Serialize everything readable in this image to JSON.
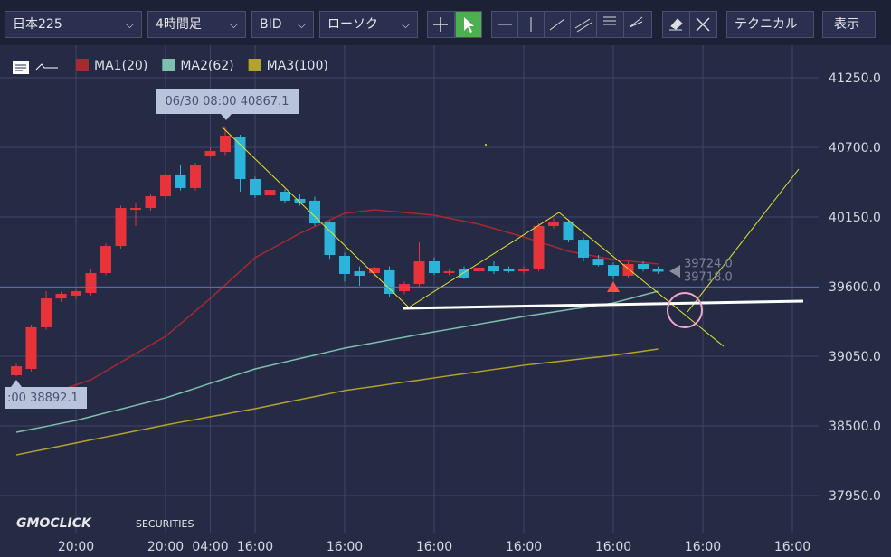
{
  "toolbar": {
    "symbol": "日本225",
    "timeframe": "4時間足",
    "price_type": "BID",
    "chart_style": "ローソク",
    "technical": "テクニカル",
    "display": "表示"
  },
  "logo": {
    "brand": "GMOCLICK",
    "sub": "SECURITIES"
  },
  "chart_data": {
    "type": "candlestick",
    "categories": [
      null,
      null,
      null,
      null,
      "20:00",
      null,
      null,
      null,
      null,
      null,
      "20:00",
      null,
      null,
      "04:00",
      null,
      null,
      "16:00",
      null,
      null,
      null,
      null,
      null,
      "16:00",
      null,
      null,
      null,
      null,
      null,
      "16:00",
      null,
      null,
      null,
      null,
      null,
      "16:00",
      null,
      null,
      null,
      null,
      null,
      "16:00",
      null,
      null,
      null,
      null,
      null,
      "16:00",
      null,
      null,
      null,
      null,
      null,
      "16:00"
    ],
    "open": [
      38900,
      38950,
      39279,
      39507,
      39529,
      39550,
      39707,
      39921,
      40207,
      40221,
      40314,
      40486,
      40379,
      40636,
      40664,
      40779,
      40450,
      40321,
      40350,
      40293,
      40279,
      40107,
      39843,
      39721,
      39707,
      39729,
      39564,
      39621,
      39800,
      39707,
      39736,
      39721,
      39764,
      39736,
      39721,
      39743,
      40079,
      40114,
      39971,
      39821,
      39771,
      39686,
      39779,
      39743,
      null,
      null,
      null,
      null,
      null,
      null,
      null,
      null,
      null
    ],
    "high": [
      38990,
      39300,
      39564,
      39560,
      39580,
      39740,
      39940,
      40240,
      40257,
      40330,
      40500,
      40560,
      40580,
      40700,
      40867,
      40800,
      40470,
      40380,
      40370,
      40330,
      40310,
      40120,
      39870,
      39760,
      39760,
      39760,
      39640,
      39950,
      39830,
      39740,
      39760,
      39770,
      39800,
      39760,
      39760,
      40100,
      40140,
      40130,
      39990,
      39850,
      39790,
      39800,
      39800,
      39760,
      null,
      null,
      null,
      null,
      null,
      null,
      null,
      null,
      null
    ],
    "low": [
      38892,
      38930,
      39260,
      39480,
      39500,
      39530,
      39690,
      39900,
      40079,
      40200,
      40290,
      40360,
      40360,
      40620,
      40640,
      40350,
      40300,
      40300,
      40260,
      40240,
      40080,
      39820,
      39640,
      39607,
      39680,
      39520,
      39540,
      39600,
      39690,
      39690,
      39660,
      39700,
      39700,
      39710,
      39700,
      39720,
      40060,
      39950,
      39800,
      39760,
      39660,
      39670,
      39720,
      39700,
      null,
      null,
      null,
      null,
      null,
      null,
      null,
      null,
      null
    ],
    "close": [
      38971,
      39279,
      39507,
      39543,
      39564,
      39707,
      39921,
      40221,
      40221,
      40314,
      40486,
      40379,
      40564,
      40671,
      40793,
      40450,
      40321,
      40364,
      40279,
      40257,
      40100,
      39850,
      39700,
      39686,
      39750,
      39543,
      39621,
      39800,
      39707,
      39721,
      39671,
      39750,
      39721,
      39721,
      39743,
      40079,
      40114,
      39971,
      39829,
      39771,
      39686,
      39779,
      39736,
      39718,
      null,
      null,
      null,
      null,
      null,
      null,
      null,
      null,
      null
    ],
    "up_color": "#e8333a",
    "down_color": "#2bb3d9",
    "series": [
      {
        "name": "MA1(20)",
        "color": "#a8282e",
        "values": [
          38664,
          38704,
          38744,
          38784,
          38824,
          38864,
          38933,
          39002,
          39070,
          39139,
          39207,
          39307,
          39407,
          39507,
          39614,
          39721,
          39829,
          39893,
          39957,
          40021,
          40074,
          40126,
          40179,
          40193,
          40207,
          40196,
          40186,
          40175,
          40164,
          40140,
          40117,
          40093,
          40060,
          40026,
          39993,
          39955,
          39917,
          39879,
          39857,
          39836,
          39814,
          39802,
          39791,
          39779,
          null,
          null,
          null,
          null,
          null,
          null,
          null,
          null,
          null
        ]
      },
      {
        "name": "MA2(62)",
        "color": "#7cc0ad",
        "values": [
          38450,
          38473,
          38496,
          38520,
          38543,
          38573,
          38603,
          38632,
          38662,
          38692,
          38721,
          38759,
          38797,
          38836,
          38874,
          38912,
          38950,
          38977,
          39005,
          39032,
          39059,
          39087,
          39114,
          39136,
          39157,
          39179,
          39200,
          39222,
          39243,
          39263,
          39283,
          39304,
          39324,
          39344,
          39364,
          39382,
          39400,
          39418,
          39435,
          39453,
          39471,
          39502,
          39533,
          39564,
          null,
          null,
          null,
          null,
          null,
          null,
          null,
          null,
          null
        ]
      },
      {
        "name": "MA3(100)",
        "color": "#b4a32a",
        "values": [
          38271,
          38295,
          38318,
          38342,
          38365,
          38389,
          38413,
          38436,
          38460,
          38483,
          38507,
          38529,
          38550,
          38572,
          38593,
          38615,
          38636,
          38660,
          38684,
          38708,
          38731,
          38755,
          38779,
          38796,
          38812,
          38829,
          38846,
          38862,
          38879,
          38896,
          38912,
          38929,
          38946,
          38962,
          38979,
          38992,
          39005,
          39018,
          39031,
          39044,
          39057,
          39074,
          39090,
          39107,
          null,
          null,
          null,
          null,
          null,
          null,
          null,
          null,
          null
        ]
      }
    ],
    "ylim": [
      37650,
      41550
    ],
    "yticks": [
      {
        "value": 37950,
        "label": "37950.0"
      },
      {
        "value": 38500,
        "label": "38500.0"
      },
      {
        "value": 39050,
        "label": "39050.0"
      },
      {
        "value": 39600,
        "label": "39600.0"
      },
      {
        "value": 40150,
        "label": "40150.0"
      },
      {
        "value": 40700,
        "label": "40700.0"
      },
      {
        "value": 41250,
        "label": "41250.0"
      }
    ],
    "grid": true,
    "annotations": [
      {
        "text": "06/30 08:00 40867.1"
      },
      {
        "text": ":00 38892.1"
      }
    ],
    "price_labels": [
      {
        "value": 39724,
        "label": "39724.0"
      },
      {
        "value": 39718,
        "label": "39718.0"
      }
    ]
  }
}
